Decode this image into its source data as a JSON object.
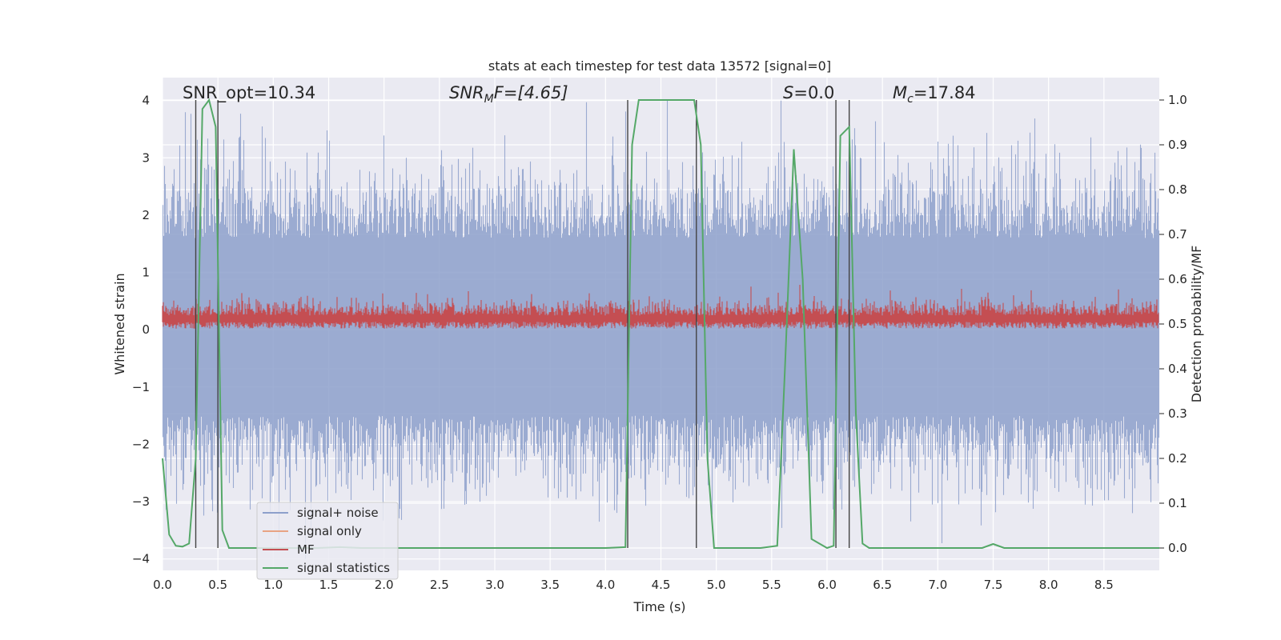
{
  "chart_data": {
    "type": "line",
    "title": "stats at each timestep for test data 13572 [signal=0]",
    "xlabel": "Time (s)",
    "ylabel_left": "Whitened strain",
    "ylabel_right": "Detection probability/MF",
    "xlim": [
      0,
      9.0
    ],
    "ylim_left": [
      -4.2,
      4.4
    ],
    "ylim_right": [
      -0.05,
      1.05
    ],
    "x_ticks": [
      "0.0",
      "0.5",
      "1.0",
      "1.5",
      "2.0",
      "2.5",
      "3.0",
      "3.5",
      "4.0",
      "4.5",
      "5.0",
      "5.5",
      "6.0",
      "6.5",
      "7.0",
      "7.5",
      "8.0",
      "8.5"
    ],
    "y_ticks_left": [
      "4",
      "3",
      "2",
      "1",
      "0",
      "−1",
      "−2",
      "−3",
      "−4"
    ],
    "y_ticks_right": [
      "1.0",
      "0.9",
      "0.8",
      "0.7",
      "0.6",
      "0.5",
      "0.4",
      "0.3",
      "0.2",
      "0.1",
      "0.0"
    ],
    "grid": true,
    "legend_position": "lower-left",
    "annotations": {
      "snr_opt": "SNR_opt=10.34",
      "snr_mf_main": "SNR",
      "snr_mf_sub": "M",
      "snr_mf_rest": "F=[4.65]",
      "s_italic": "S",
      "s_rest": "=0.0",
      "mc_main": "M",
      "mc_sub": "c",
      "mc_rest": "=17.84"
    },
    "series": [
      {
        "name": "signal+ noise",
        "axis": "left",
        "color": "#8da0cb",
        "style": "noise",
        "amplitude_range": [
          -4.0,
          4.0
        ]
      },
      {
        "name": "signal only",
        "axis": "left",
        "color": "#e8a383",
        "values": []
      },
      {
        "name": "MF",
        "axis": "left",
        "color": "#c44e52",
        "style": "noise",
        "amplitude_range": [
          0.0,
          1.0
        ]
      },
      {
        "name": "signal statistics",
        "axis": "right",
        "color": "#55a868",
        "x": [
          0.0,
          0.06,
          0.12,
          0.18,
          0.24,
          0.3,
          0.36,
          0.42,
          0.48,
          0.54,
          0.6,
          0.66,
          0.72,
          0.78,
          0.84,
          0.9,
          1.0,
          1.2,
          1.4,
          1.6,
          1.8,
          2.0,
          2.5,
          3.0,
          3.5,
          4.0,
          4.18,
          4.24,
          4.3,
          4.36,
          4.42,
          4.6,
          4.8,
          4.86,
          4.92,
          4.98,
          5.04,
          5.1,
          5.2,
          5.4,
          5.55,
          5.62,
          5.7,
          5.78,
          5.86,
          6.0,
          6.06,
          6.12,
          6.2,
          6.26,
          6.32,
          6.38,
          6.5,
          7.0,
          7.4,
          7.5,
          7.6,
          8.0,
          9.0
        ],
        "values": [
          0.2,
          0.03,
          0.005,
          0.003,
          0.01,
          0.2,
          0.98,
          1.0,
          0.94,
          0.04,
          0.0,
          0.0,
          0.0,
          0.0,
          0.0,
          0.0,
          0.0,
          0.0,
          0.0,
          0.002,
          0.0,
          0.0,
          0.0,
          0.0,
          0.0,
          0.0,
          0.002,
          0.9,
          1.0,
          1.0,
          1.0,
          1.0,
          1.0,
          0.9,
          0.2,
          0.0,
          0.0,
          0.0,
          0.0,
          0.0,
          0.005,
          0.4,
          0.89,
          0.6,
          0.02,
          0.0,
          0.005,
          0.92,
          0.94,
          0.3,
          0.01,
          0.0,
          0.0,
          0.0,
          0.0,
          0.009,
          0.0,
          0.0,
          0.0
        ]
      }
    ],
    "vertical_markers_x": [
      0.3,
      0.5,
      4.2,
      4.82,
      6.08,
      6.2
    ]
  }
}
